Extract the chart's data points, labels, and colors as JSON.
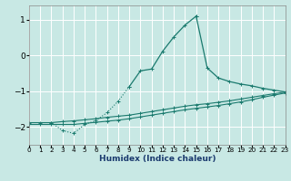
{
  "xlabel": "Humidex (Indice chaleur)",
  "bg_color": "#c8e8e4",
  "grid_color": "#ffffff",
  "line_color": "#1a7a6e",
  "xlim": [
    0,
    23
  ],
  "ylim": [
    -2.5,
    1.4
  ],
  "yticks": [
    -2,
    -1,
    0,
    1
  ],
  "xticks": [
    0,
    1,
    2,
    3,
    4,
    5,
    6,
    7,
    8,
    9,
    10,
    11,
    12,
    13,
    14,
    15,
    16,
    17,
    18,
    19,
    20,
    21,
    22,
    23
  ],
  "line1_x": [
    0,
    1,
    2,
    3,
    4,
    5,
    6,
    7,
    8,
    9,
    10,
    11,
    12,
    13,
    14,
    15,
    16,
    17,
    18,
    19,
    20,
    21,
    22,
    23
  ],
  "line1_y": [
    -1.88,
    -1.88,
    -1.88,
    -1.85,
    -1.83,
    -1.8,
    -1.77,
    -1.73,
    -1.7,
    -1.67,
    -1.62,
    -1.57,
    -1.52,
    -1.47,
    -1.42,
    -1.38,
    -1.35,
    -1.31,
    -1.27,
    -1.22,
    -1.17,
    -1.12,
    -1.07,
    -1.02
  ],
  "line2_x": [
    0,
    1,
    2,
    3,
    4,
    5,
    6,
    7,
    8,
    9,
    10,
    11,
    12,
    13,
    14,
    15,
    16,
    17,
    18,
    19,
    20,
    21,
    22,
    23
  ],
  "line2_y": [
    -1.93,
    -1.93,
    -1.93,
    -1.93,
    -1.93,
    -1.9,
    -1.87,
    -1.84,
    -1.81,
    -1.77,
    -1.72,
    -1.67,
    -1.62,
    -1.57,
    -1.52,
    -1.48,
    -1.44,
    -1.4,
    -1.35,
    -1.3,
    -1.24,
    -1.17,
    -1.11,
    -1.05
  ],
  "main_x": [
    2,
    3,
    4,
    5,
    6,
    7,
    8,
    9,
    10,
    11,
    12,
    13,
    14,
    15,
    16,
    17,
    18,
    19,
    20,
    21,
    22,
    23
  ],
  "main_y": [
    -1.88,
    -2.1,
    -2.18,
    -1.93,
    -1.82,
    -1.6,
    -1.28,
    -0.87,
    -0.43,
    -0.38,
    0.12,
    0.52,
    0.85,
    1.1,
    -0.35,
    -0.63,
    -0.73,
    -0.8,
    -0.85,
    -0.92,
    -0.97,
    -1.02
  ]
}
